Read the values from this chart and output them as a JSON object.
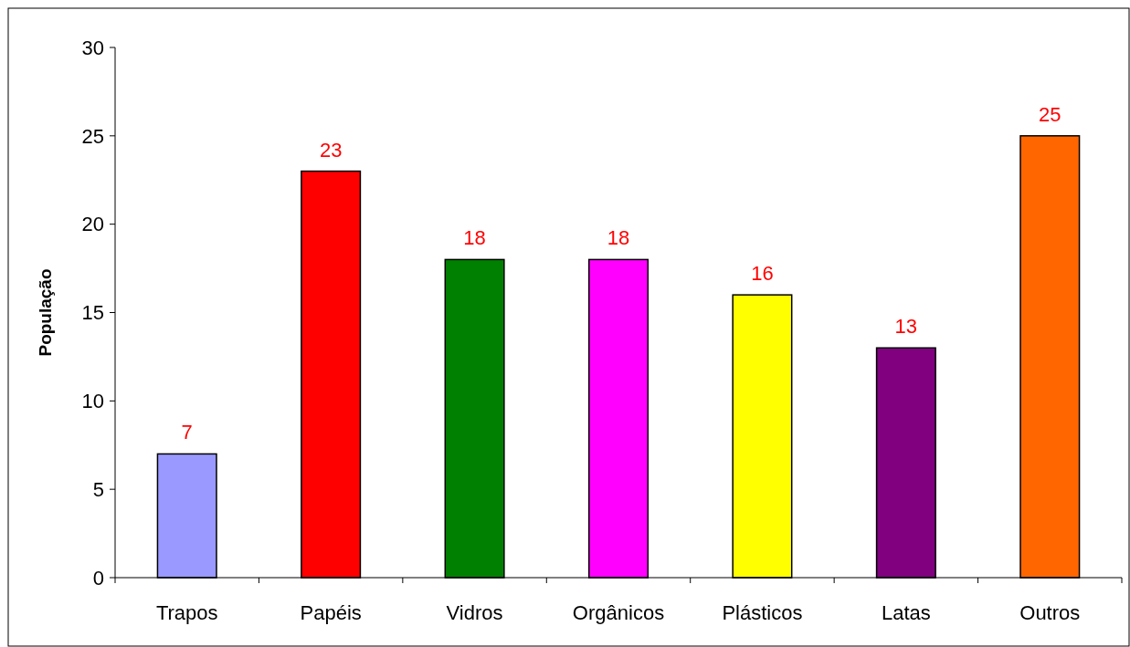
{
  "chart_data": {
    "type": "bar",
    "ylabel": "População",
    "categories": [
      "Trapos",
      "Papéis",
      "Vidros",
      "Orgânicos",
      "Plásticos",
      "Latas",
      "Outros"
    ],
    "values": [
      7,
      23,
      18,
      18,
      16,
      13,
      25
    ],
    "colors": [
      "#9999ff",
      "#ff0000",
      "#008000",
      "#ff00ff",
      "#ffff00",
      "#800080",
      "#ff6600"
    ],
    "ylim": [
      0,
      30
    ],
    "yticks": [
      0,
      5,
      10,
      15,
      20,
      25,
      30
    ],
    "grid": false,
    "data_labels": true
  }
}
